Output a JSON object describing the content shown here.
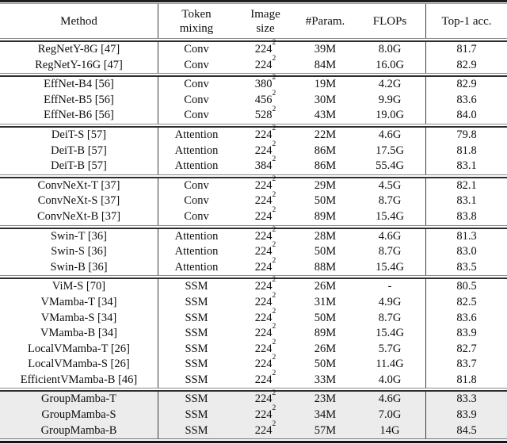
{
  "table": {
    "highlight_color": "#ececec",
    "columns": [
      {
        "label": "Method"
      },
      {
        "label": "Token\nmixing"
      },
      {
        "label": "Image\nsize"
      },
      {
        "label": "#Param."
      },
      {
        "label": "FLOPs"
      },
      {
        "label": "Top-1 acc."
      }
    ],
    "sections": [
      {
        "highlight": false,
        "rows": [
          {
            "method": "RegNetY-8G [47]",
            "mixing": "Conv",
            "size": "224",
            "exp": "2",
            "params": "39M",
            "flops": "8.0G",
            "acc": "81.7"
          },
          {
            "method": "RegNetY-16G [47]",
            "mixing": "Conv",
            "size": "224",
            "exp": "2",
            "params": "84M",
            "flops": "16.0G",
            "acc": "82.9"
          }
        ]
      },
      {
        "highlight": false,
        "rows": [
          {
            "method": "EffNet-B4 [56]",
            "mixing": "Conv",
            "size": "380",
            "exp": "2",
            "params": "19M",
            "flops": "4.2G",
            "acc": "82.9"
          },
          {
            "method": "EffNet-B5 [56]",
            "mixing": "Conv",
            "size": "456",
            "exp": "2",
            "params": "30M",
            "flops": "9.9G",
            "acc": "83.6"
          },
          {
            "method": "EffNet-B6 [56]",
            "mixing": "Conv",
            "size": "528",
            "exp": "2",
            "params": "43M",
            "flops": "19.0G",
            "acc": "84.0"
          }
        ]
      },
      {
        "highlight": false,
        "rows": [
          {
            "method": "DeiT-S [57]",
            "mixing": "Attention",
            "size": "224",
            "exp": "2",
            "params": "22M",
            "flops": "4.6G",
            "acc": "79.8"
          },
          {
            "method": "DeiT-B [57]",
            "mixing": "Attention",
            "size": "224",
            "exp": "2",
            "params": "86M",
            "flops": "17.5G",
            "acc": "81.8"
          },
          {
            "method": "DeiT-B [57]",
            "mixing": "Attention",
            "size": "384",
            "exp": "2",
            "params": "86M",
            "flops": "55.4G",
            "acc": "83.1"
          }
        ]
      },
      {
        "highlight": false,
        "rows": [
          {
            "method": "ConvNeXt-T [37]",
            "mixing": "Conv",
            "size": "224",
            "exp": "2",
            "params": "29M",
            "flops": "4.5G",
            "acc": "82.1"
          },
          {
            "method": "ConvNeXt-S [37]",
            "mixing": "Conv",
            "size": "224",
            "exp": "2",
            "params": "50M",
            "flops": "8.7G",
            "acc": "83.1"
          },
          {
            "method": "ConvNeXt-B [37]",
            "mixing": "Conv",
            "size": "224",
            "exp": "2",
            "params": "89M",
            "flops": "15.4G",
            "acc": "83.8"
          }
        ]
      },
      {
        "highlight": false,
        "rows": [
          {
            "method": "Swin-T [36]",
            "mixing": "Attention",
            "size": "224",
            "exp": "2",
            "params": "28M",
            "flops": "4.6G",
            "acc": "81.3"
          },
          {
            "method": "Swin-S [36]",
            "mixing": "Attention",
            "size": "224",
            "exp": "2",
            "params": "50M",
            "flops": "8.7G",
            "acc": "83.0"
          },
          {
            "method": "Swin-B [36]",
            "mixing": "Attention",
            "size": "224",
            "exp": "2",
            "params": "88M",
            "flops": "15.4G",
            "acc": "83.5"
          }
        ]
      },
      {
        "highlight": false,
        "rows": [
          {
            "method": "ViM-S [70]",
            "mixing": "SSM",
            "size": "224",
            "exp": "2",
            "params": "26M",
            "flops": "-",
            "acc": "80.5"
          },
          {
            "method": "VMamba-T [34]",
            "mixing": "SSM",
            "size": "224",
            "exp": "2",
            "params": "31M",
            "flops": "4.9G",
            "acc": "82.5"
          },
          {
            "method": "VMamba-S [34]",
            "mixing": "SSM",
            "size": "224",
            "exp": "2",
            "params": "50M",
            "flops": "8.7G",
            "acc": "83.6"
          },
          {
            "method": "VMamba-B [34]",
            "mixing": "SSM",
            "size": "224",
            "exp": "2",
            "params": "89M",
            "flops": "15.4G",
            "acc": "83.9"
          },
          {
            "method": "LocalVMamba-T [26]",
            "mixing": "SSM",
            "size": "224",
            "exp": "2",
            "params": "26M",
            "flops": "5.7G",
            "acc": "82.7"
          },
          {
            "method": "LocalVMamba-S [26]",
            "mixing": "SSM",
            "size": "224",
            "exp": "2",
            "params": "50M",
            "flops": "11.4G",
            "acc": "83.7"
          },
          {
            "method": "EfficientVMamba-B [46]",
            "mixing": "SSM",
            "size": "224",
            "exp": "2",
            "params": "33M",
            "flops": "4.0G",
            "acc": "81.8"
          }
        ]
      },
      {
        "highlight": true,
        "rows": [
          {
            "method": "GroupMamba-T",
            "mixing": "SSM",
            "size": "224",
            "exp": "2",
            "params": "23M",
            "flops": "4.6G",
            "acc": "83.3"
          },
          {
            "method": "GroupMamba-S",
            "mixing": "SSM",
            "size": "224",
            "exp": "2",
            "params": "34M",
            "flops": "7.0G",
            "acc": "83.9"
          },
          {
            "method": "GroupMamba-B",
            "mixing": "SSM",
            "size": "224",
            "exp": "2",
            "params": "57M",
            "flops": "14G",
            "acc": "84.5"
          }
        ]
      }
    ]
  }
}
